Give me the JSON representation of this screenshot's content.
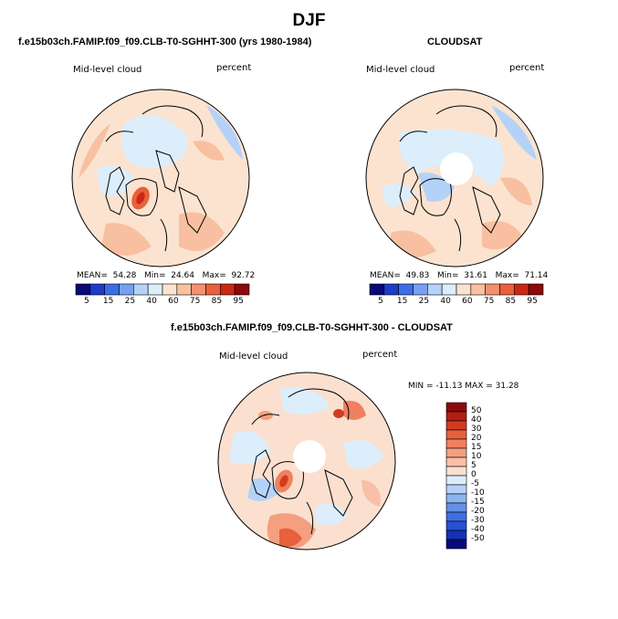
{
  "figure": {
    "title": "DJF"
  },
  "panels": [
    {
      "id": "model",
      "title": "f.e15b03ch.FAMIP.f09_f09.CLB-T0-SGHHT-300 (yrs 1980-1984)",
      "left_label": "Mid-level cloud",
      "right_label": "percent",
      "stats": {
        "mean_label": "MEAN=",
        "mean": "54.28",
        "min_label": "Min=",
        "min": "24.64",
        "max_label": "Max=",
        "max": "92.72"
      }
    },
    {
      "id": "cloudsat",
      "title": "CLOUDSAT",
      "left_label": "Mid-level cloud",
      "right_label": "percent",
      "stats": {
        "mean_label": "MEAN=",
        "mean": "49.83",
        "min_label": "Min=",
        "min": "31.61",
        "max_label": "Max=",
        "max": "71.14"
      }
    },
    {
      "id": "difference",
      "title": "f.e15b03ch.FAMIP.f09_f09.CLB-T0-SGHHT-300 - CLOUDSAT",
      "left_label": "Mid-level cloud",
      "right_label": "percent",
      "minmax": "MIN = -11.13 MAX =  31.28"
    }
  ],
  "colorbar_horizontal": {
    "labels": [
      "5",
      "15",
      "25",
      "40",
      "60",
      "75",
      "85",
      "95"
    ],
    "colors": [
      "#0a0a78",
      "#1e3cc8",
      "#3c6ee6",
      "#78a0f0",
      "#b4d2f8",
      "#dceefb",
      "#fbe3d0",
      "#f8c0a0",
      "#f49070",
      "#e8603c",
      "#c82814",
      "#8c0a0a"
    ]
  },
  "colorbar_vertical": {
    "labels": [
      "50",
      "40",
      "30",
      "20",
      "15",
      "10",
      "5",
      "0",
      "-5",
      "-10",
      "-15",
      "-20",
      "-30",
      "-40",
      "-50"
    ],
    "colors": [
      "#8c0a0a",
      "#b41e14",
      "#d23c1e",
      "#e8603c",
      "#f08060",
      "#f4a080",
      "#f8c0a8",
      "#fbe0d0",
      "#dceefb",
      "#b4d2f8",
      "#8cb4f0",
      "#6490e8",
      "#3c6ee6",
      "#2850d2",
      "#1432b4",
      "#0a0a78"
    ]
  },
  "map_legend_note": "North polar stereographic projections"
}
